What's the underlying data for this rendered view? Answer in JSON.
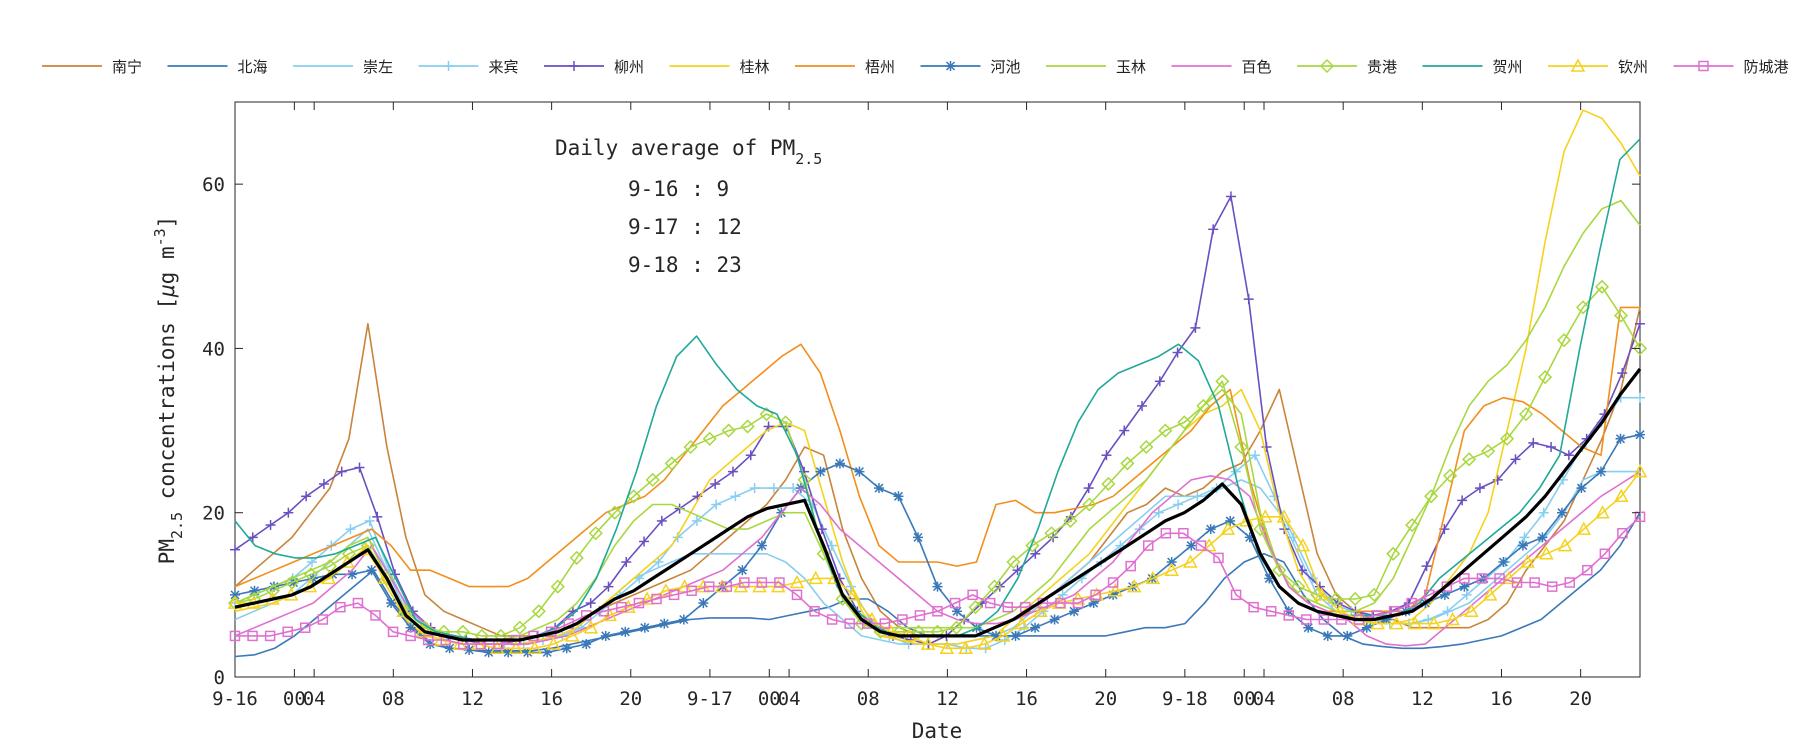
{
  "chart_data": {
    "type": "line",
    "xlabel": "Date",
    "ylabel": {
      "prefix": "PM",
      "sub": "2.5",
      "mid": " concentrations [",
      "mu": "μ",
      "unit": "g m",
      "sup": "-3",
      "suffix": "]"
    },
    "ylim": [
      0,
      70
    ],
    "yticks": [
      0,
      20,
      40,
      60
    ],
    "xlim": [
      0,
      71
    ],
    "xticks": [
      {
        "x": 0,
        "label": "9-16"
      },
      {
        "x": 3,
        "label": "00"
      },
      {
        "x": 4,
        "label": "04"
      },
      {
        "x": 8,
        "label": "08"
      },
      {
        "x": 12,
        "label": "12"
      },
      {
        "x": 16,
        "label": "16"
      },
      {
        "x": 20,
        "label": "20"
      },
      {
        "x": 24,
        "label": "9-17"
      },
      {
        "x": 27,
        "label": "00"
      },
      {
        "x": 28,
        "label": "04"
      },
      {
        "x": 32,
        "label": "08"
      },
      {
        "x": 36,
        "label": "12"
      },
      {
        "x": 40,
        "label": "16"
      },
      {
        "x": 44,
        "label": "20"
      },
      {
        "x": 48,
        "label": "9-18"
      },
      {
        "x": 51,
        "label": "00"
      },
      {
        "x": 52,
        "label": "04"
      },
      {
        "x": 56,
        "label": "08"
      },
      {
        "x": 60,
        "label": "12"
      },
      {
        "x": 64,
        "label": "16"
      },
      {
        "x": 68,
        "label": "20"
      }
    ],
    "annotation": {
      "title_prefix": "Daily average of PM",
      "title_sub": "2.5",
      "lines": [
        "9-16 : 9",
        "9-17 : 12",
        "9-18 : 23"
      ]
    },
    "legend_position": "top",
    "grid": false,
    "series": [
      {
        "name": "南宁",
        "color": "#c8843a",
        "marker": "none",
        "values": [
          11,
          13,
          15,
          17,
          20,
          23,
          29,
          43,
          28,
          17,
          10,
          8,
          7,
          6,
          5,
          5,
          5,
          5,
          6,
          8,
          9,
          10,
          11,
          12,
          13,
          15,
          17,
          19,
          21,
          24,
          28,
          27,
          18,
          12,
          8,
          6,
          5,
          5,
          5,
          5,
          6,
          7,
          8,
          10,
          12,
          14,
          17,
          20,
          21,
          23,
          22,
          23,
          25,
          26,
          30,
          35,
          25,
          15,
          10,
          8,
          7,
          7,
          6,
          6,
          6,
          6,
          7,
          9,
          13,
          16,
          19,
          24,
          29,
          35,
          45
        ]
      },
      {
        "name": "北海",
        "color": "#3a78b8",
        "marker": "none",
        "values": [
          2.5,
          2.7,
          3.5,
          5,
          7,
          9,
          11,
          13,
          9,
          6,
          4,
          3.5,
          3.3,
          3.2,
          3.2,
          3.2,
          3.5,
          4,
          4.5,
          5,
          5.5,
          6,
          6.5,
          7,
          7.2,
          7.2,
          7.2,
          7,
          7.5,
          8,
          8.5,
          9.5,
          9.5,
          8,
          6,
          5,
          5,
          5,
          5,
          5,
          5,
          5,
          5,
          5,
          5,
          5.5,
          6,
          6,
          6.5,
          9,
          12,
          14,
          15,
          14,
          10,
          7,
          5,
          4,
          3.7,
          3.5,
          3.5,
          3.7,
          4,
          4.5,
          5,
          6,
          7,
          9,
          11,
          13,
          16,
          20
        ]
      },
      {
        "name": "崇左",
        "color": "#87cef0",
        "marker": "none",
        "values": [
          7,
          8,
          9,
          10,
          12,
          14,
          16,
          18,
          13,
          8,
          6,
          5,
          4.5,
          4,
          4,
          4,
          4.5,
          5,
          6,
          8,
          10,
          12,
          13,
          14,
          15,
          15,
          15,
          15,
          15,
          14,
          12,
          9,
          7,
          5,
          4.5,
          4,
          4,
          4,
          4,
          4.5,
          5,
          6,
          8,
          10,
          12,
          14,
          16,
          18,
          20,
          22,
          22,
          22,
          23,
          24,
          23,
          20,
          15,
          10,
          8,
          7,
          6.5,
          6.5,
          6.5,
          7,
          8,
          9,
          11,
          13,
          15,
          17,
          20,
          24,
          25,
          25,
          25
        ]
      },
      {
        "name": "来宾",
        "color": "#87cef0",
        "marker": "plus",
        "values": [
          9,
          10,
          11,
          12,
          14,
          16,
          18,
          19,
          13,
          8,
          6,
          5,
          4.5,
          4,
          4,
          4,
          4.5,
          5,
          6,
          8,
          10,
          12,
          14,
          17,
          19,
          21,
          22,
          23,
          23,
          23,
          21,
          16,
          11,
          7,
          5,
          4,
          4,
          4,
          3.5,
          3.5,
          4.5,
          6,
          8,
          10,
          12,
          14,
          16,
          18,
          20,
          21,
          22,
          23,
          25,
          27,
          22,
          17,
          12,
          9,
          8,
          7,
          6.5,
          6.5,
          7,
          8,
          10,
          12,
          14,
          17,
          20,
          24,
          28,
          31,
          34,
          34
        ]
      },
      {
        "name": "柳州",
        "color": "#6a4fc0",
        "marker": "plus",
        "values": [
          15.5,
          17,
          18.5,
          20,
          22,
          23.5,
          25,
          25.5,
          19.5,
          12.5,
          8,
          6,
          5,
          4.5,
          4,
          4,
          4.5,
          5,
          6,
          8,
          9,
          11,
          14,
          16.5,
          19,
          20.5,
          22,
          23.5,
          25,
          27,
          30.5,
          30.5,
          25,
          18,
          12,
          8,
          6,
          5,
          4.5,
          4,
          5,
          7,
          9,
          11,
          13,
          15,
          17,
          19.5,
          23,
          27,
          30,
          33,
          36,
          39.5,
          42.5,
          54.5,
          58.5,
          46,
          28,
          18,
          13,
          11,
          9,
          8,
          7.5,
          8,
          9,
          13.5,
          18,
          21.5,
          23,
          24,
          26.5,
          28.5,
          28,
          27,
          29,
          32,
          37,
          43
        ]
      },
      {
        "name": "桂林",
        "color": "#f5d21e",
        "marker": "none",
        "values": [
          8,
          8.5,
          9,
          10,
          11,
          12,
          14,
          16,
          11,
          7,
          5,
          4.5,
          4,
          4,
          4,
          4,
          4.5,
          5,
          6,
          8,
          10,
          12,
          14,
          16,
          20,
          24,
          26,
          28,
          30,
          31,
          30,
          22,
          14,
          8,
          5,
          4.5,
          4,
          4,
          4,
          4.5,
          5,
          7,
          9,
          11,
          13,
          15,
          18,
          21,
          24,
          27,
          30,
          32,
          33,
          35,
          30,
          20,
          13,
          9,
          8,
          7,
          6.5,
          6.5,
          7,
          9,
          12,
          15,
          20,
          30,
          40,
          53,
          64,
          69,
          68,
          65,
          61
        ]
      },
      {
        "name": "梧州",
        "color": "#f28e1c",
        "marker": "none",
        "values": [
          11,
          12,
          13,
          14,
          15,
          16,
          17,
          18,
          16,
          13,
          13,
          12,
          11,
          11,
          11,
          12,
          14,
          16,
          18,
          20,
          21,
          22,
          24,
          27,
          30,
          33,
          35,
          37,
          39,
          40.5,
          37,
          30,
          22,
          16,
          14,
          14,
          14,
          13.5,
          14,
          21,
          21.5,
          20,
          20,
          20.5,
          21,
          22,
          24,
          26,
          28,
          30,
          33,
          35,
          24,
          16,
          11,
          9,
          8,
          8,
          8,
          8,
          8,
          10,
          20,
          30,
          33,
          34,
          33.5,
          32,
          30,
          28,
          27,
          45,
          45
        ]
      },
      {
        "name": "河池",
        "color": "#3a78b8",
        "marker": "star",
        "values": [
          10,
          10.5,
          11,
          11.5,
          12,
          12.5,
          12.5,
          13,
          9,
          6,
          4,
          3.5,
          3.3,
          3,
          3,
          3,
          3,
          3.5,
          4,
          5,
          5.5,
          6,
          6.5,
          7,
          9,
          11,
          13,
          16,
          20,
          23,
          25,
          26,
          25,
          23,
          22,
          17,
          11,
          8,
          6,
          5,
          5,
          6,
          7,
          8,
          9,
          10,
          11,
          12,
          14,
          16,
          18,
          19,
          17,
          12,
          8,
          6,
          5,
          5,
          6,
          7,
          8,
          9,
          10,
          11,
          12,
          14,
          16,
          17,
          20,
          23,
          25,
          29,
          29.5
        ]
      },
      {
        "name": "玉林",
        "color": "#a8d840",
        "marker": "none",
        "values": [
          9,
          10,
          11,
          12,
          13,
          14,
          16,
          17,
          12,
          8,
          6,
          5,
          4.5,
          4.5,
          4.5,
          5,
          6,
          7,
          9,
          12,
          16,
          19,
          21,
          21,
          20,
          19,
          18,
          18,
          19,
          20,
          20,
          15,
          10,
          7,
          6,
          6,
          6,
          6,
          6,
          6,
          7,
          8,
          10,
          12,
          15,
          18,
          20,
          22,
          24,
          27,
          30,
          33,
          35,
          32,
          20,
          13,
          10,
          9,
          8,
          8,
          9,
          12,
          17,
          22,
          28,
          33,
          36,
          38,
          41,
          45,
          50,
          54,
          57,
          58,
          55
        ]
      },
      {
        "name": "百色",
        "color": "#e070d0",
        "marker": "none",
        "values": [
          5,
          6,
          7,
          8,
          9,
          11,
          13,
          16,
          12,
          8,
          6,
          5,
          4.5,
          4,
          4,
          4,
          4.5,
          5,
          6,
          7,
          8,
          9,
          10,
          11,
          12,
          13,
          15,
          17,
          20,
          23,
          21,
          18,
          16,
          14,
          12,
          10,
          8,
          7,
          6.5,
          6.5,
          7,
          8,
          9,
          10,
          12,
          14,
          17,
          20,
          22,
          24,
          24.5,
          24,
          22,
          16,
          11,
          9,
          8,
          7,
          5,
          4,
          3.8,
          4,
          6,
          8,
          10,
          12,
          14,
          16,
          18,
          20,
          22,
          23.5,
          25
        ]
      },
      {
        "name": "贵港",
        "color": "#a8d840",
        "marker": "diamond",
        "values": [
          9,
          9.5,
          10.5,
          11.5,
          12.5,
          13.5,
          15,
          16,
          12,
          8,
          6,
          5.5,
          5.5,
          5,
          5,
          6,
          8,
          11,
          14.5,
          17.5,
          20,
          22,
          24,
          26,
          28,
          29,
          30,
          30.5,
          32,
          31,
          24,
          15,
          9.5,
          6.5,
          5.5,
          5.5,
          5.5,
          5.5,
          6,
          8.5,
          11,
          14,
          16,
          17.5,
          19,
          21,
          23.5,
          26,
          28,
          30,
          31,
          33,
          36,
          28,
          18,
          13,
          11,
          10,
          9.5,
          9.5,
          10,
          15,
          18.5,
          22,
          24.5,
          26.5,
          27.5,
          29,
          32,
          36.5,
          41,
          45,
          47.5,
          44,
          40
        ]
      },
      {
        "name": "贺州",
        "color": "#20a898",
        "marker": "none",
        "values": [
          19,
          16,
          15,
          14.5,
          14.5,
          15,
          16,
          17,
          12,
          7,
          5.5,
          5,
          4.5,
          4.5,
          4.5,
          5,
          6,
          8,
          12,
          18,
          25,
          33,
          39,
          41.5,
          38,
          35,
          33,
          32,
          27,
          18,
          11,
          8,
          6,
          5,
          5,
          5,
          5,
          6,
          8,
          12,
          18,
          25,
          31,
          35,
          37,
          38,
          39,
          40.5,
          38.5,
          33,
          23,
          15,
          11,
          9,
          8,
          7.5,
          7.5,
          7.5,
          7.5,
          9,
          12,
          14,
          16,
          18,
          20,
          23,
          27,
          40,
          52,
          63,
          65.5
        ]
      },
      {
        "name": "钦州",
        "color": "#f5d21e",
        "marker": "triangle",
        "values": [
          9,
          9,
          9.5,
          10,
          11,
          12,
          14,
          15.5,
          12,
          8,
          5.5,
          4.5,
          4,
          4,
          3.5,
          3.5,
          3.5,
          4,
          5,
          6,
          7.5,
          8.5,
          9.5,
          10.5,
          11,
          11,
          11,
          11,
          11,
          11,
          11.5,
          12,
          12,
          10,
          7,
          5.5,
          5,
          4,
          3.5,
          3.5,
          4,
          5,
          6.5,
          8,
          9,
          9.5,
          10,
          10.5,
          11,
          12,
          13,
          14,
          16,
          18,
          19,
          19.5,
          19.5,
          16,
          10,
          8,
          7,
          6.5,
          6.5,
          6.5,
          6.5,
          7,
          8,
          10,
          12,
          14,
          15,
          16,
          18,
          20,
          22,
          25
        ]
      },
      {
        "name": "防城港",
        "color": "#e070d0",
        "marker": "square",
        "values": [
          5,
          5,
          5,
          5.5,
          6,
          7,
          8.5,
          9,
          7.5,
          5.5,
          5,
          4.5,
          4.5,
          4,
          4,
          4,
          4.5,
          5,
          5.5,
          6.5,
          7.5,
          8,
          8.5,
          9,
          9.5,
          10,
          10.5,
          11,
          11,
          11.5,
          11.5,
          11.5,
          10,
          8,
          7,
          6.5,
          6.5,
          6.5,
          7,
          7.5,
          8,
          9,
          10,
          9,
          8.5,
          8.5,
          9,
          9,
          9,
          10,
          11.5,
          13.5,
          16,
          17.5,
          17.5,
          16,
          14.5,
          10,
          8.5,
          8,
          7.5,
          7,
          7,
          7,
          7,
          7.5,
          8,
          9,
          10,
          11,
          12,
          12,
          12,
          11.5,
          11.5,
          11,
          11.5,
          13,
          15,
          17.5,
          19.5
        ]
      },
      {
        "name": "",
        "color": "#000000",
        "marker": "none",
        "width": 3.2,
        "values": [
          8.5,
          9,
          9.5,
          10,
          11,
          12.5,
          14,
          15.5,
          12,
          7.5,
          5.5,
          5,
          4.5,
          4.5,
          4.5,
          4.5,
          5,
          5.5,
          6.5,
          8,
          9.5,
          10.5,
          12,
          13.5,
          15,
          16.5,
          18,
          19.5,
          20.5,
          21,
          21.5,
          16,
          10,
          7,
          5.5,
          5,
          5,
          5,
          5,
          5,
          6,
          7,
          8.5,
          10,
          11.5,
          13,
          14.5,
          16,
          17.5,
          19,
          20,
          21.5,
          23.5,
          21,
          15,
          11,
          9,
          8,
          7.5,
          7,
          7,
          7.5,
          8,
          9.5,
          11.5,
          13.5,
          15.5,
          17.5,
          19.5,
          22,
          25,
          28,
          31,
          34.5,
          37.5
        ]
      }
    ]
  }
}
